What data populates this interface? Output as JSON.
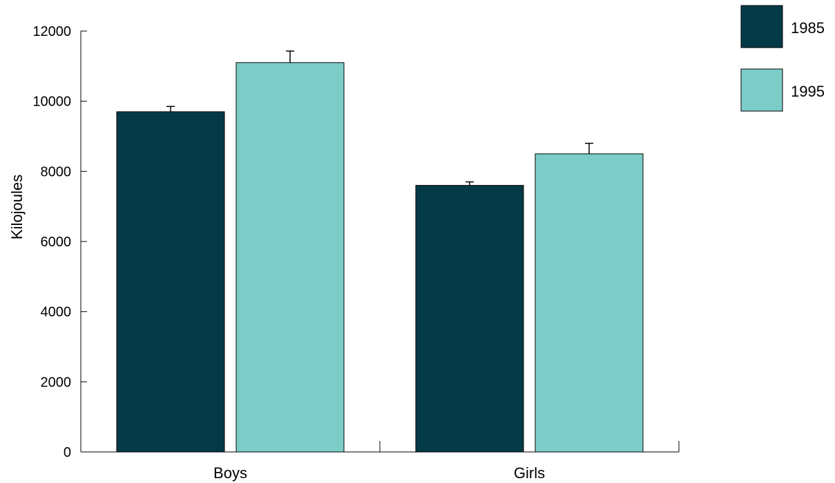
{
  "colors": {
    "series_1985": "#043a47",
    "series_1995": "#7ccdc8",
    "axis": "#000000"
  },
  "chart_data": {
    "type": "bar",
    "title": "",
    "xlabel": "",
    "ylabel": "Kilojoules",
    "ylim": [
      0,
      12000
    ],
    "yticks": [
      0,
      2000,
      4000,
      6000,
      8000,
      10000,
      12000
    ],
    "categories": [
      "Boys",
      "Girls"
    ],
    "series": [
      {
        "name": "1985",
        "values": [
          9700,
          7600
        ],
        "error": [
          150,
          100
        ]
      },
      {
        "name": "1995",
        "values": [
          11100,
          8500
        ],
        "error": [
          330,
          300
        ]
      }
    ],
    "grid": false,
    "legend_position": "top-right",
    "error_bars": "upper"
  }
}
